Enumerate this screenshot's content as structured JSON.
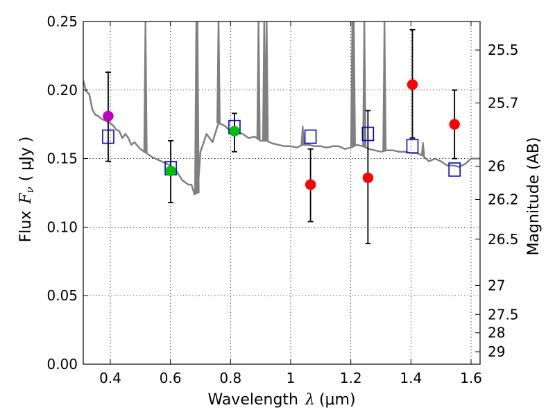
{
  "chart_data": {
    "type": "scatter",
    "xlabel": "Wavelength",
    "xlabel_symbol": "λ",
    "xlabel_unit": "(μm)",
    "ylabel": "Flux",
    "ylabel_symbol": "F",
    "ylabel_subscript": "ν",
    "ylabel_unit": "( μJy )",
    "ylabel_right": "Magnitude (AB)",
    "xlim": [
      0.31,
      1.63
    ],
    "ylim": [
      0.0,
      0.25
    ],
    "grid": true,
    "x_ticks": [
      {
        "value": 0.4,
        "label": "0.4"
      },
      {
        "value": 0.6,
        "label": "0.6"
      },
      {
        "value": 0.8,
        "label": "0.8"
      },
      {
        "value": 1.0,
        "label": "1"
      },
      {
        "value": 1.2,
        "label": "1.2"
      },
      {
        "value": 1.4,
        "label": "1.4"
      },
      {
        "value": 1.6,
        "label": "1.6"
      }
    ],
    "y_ticks": [
      {
        "value": 0.0,
        "label": "0.00"
      },
      {
        "value": 0.05,
        "label": "0.05"
      },
      {
        "value": 0.1,
        "label": "0.10"
      },
      {
        "value": 0.15,
        "label": "0.15"
      },
      {
        "value": 0.2,
        "label": "0.20"
      },
      {
        "value": 0.25,
        "label": "0.25"
      }
    ],
    "magnitude_ticks": [
      {
        "flux": 0.2292,
        "label": "25.5"
      },
      {
        "flux": 0.1906,
        "label": "25.7"
      },
      {
        "flux": 0.1445,
        "label": "26"
      },
      {
        "flux": 0.1202,
        "label": "26.2"
      },
      {
        "flux": 0.0912,
        "label": "26.5"
      },
      {
        "flux": 0.0575,
        "label": "27"
      },
      {
        "flux": 0.0363,
        "label": "27.5"
      },
      {
        "flux": 0.0229,
        "label": "28"
      },
      {
        "flux": 0.0091,
        "label": "29"
      }
    ],
    "spectrum": {
      "color": "#808080",
      "continuum": [
        [
          0.31,
          0.207
        ],
        [
          0.32,
          0.199
        ],
        [
          0.33,
          0.197
        ],
        [
          0.34,
          0.186
        ],
        [
          0.35,
          0.182
        ],
        [
          0.36,
          0.181
        ],
        [
          0.37,
          0.179
        ],
        [
          0.38,
          0.178
        ],
        [
          0.39,
          0.177
        ],
        [
          0.4,
          0.176
        ],
        [
          0.41,
          0.174
        ],
        [
          0.42,
          0.171
        ],
        [
          0.43,
          0.17
        ],
        [
          0.44,
          0.165
        ],
        [
          0.45,
          0.168
        ],
        [
          0.46,
          0.165
        ],
        [
          0.47,
          0.16
        ],
        [
          0.48,
          0.162
        ],
        [
          0.5,
          0.157
        ],
        [
          0.52,
          0.154
        ],
        [
          0.54,
          0.151
        ],
        [
          0.56,
          0.149
        ],
        [
          0.58,
          0.147
        ],
        [
          0.6,
          0.145
        ],
        [
          0.62,
          0.141
        ],
        [
          0.64,
          0.134
        ],
        [
          0.66,
          0.131
        ],
        [
          0.67,
          0.131
        ],
        [
          0.68,
          0.124
        ],
        [
          0.69,
          0.125
        ],
        [
          0.7,
          0.155
        ],
        [
          0.72,
          0.168
        ],
        [
          0.74,
          0.162
        ],
        [
          0.76,
          0.176
        ],
        [
          0.78,
          0.174
        ],
        [
          0.8,
          0.17
        ],
        [
          0.82,
          0.169
        ],
        [
          0.84,
          0.168
        ],
        [
          0.86,
          0.165
        ],
        [
          0.88,
          0.166
        ],
        [
          0.9,
          0.163
        ],
        [
          0.92,
          0.163
        ],
        [
          0.94,
          0.161
        ],
        [
          0.96,
          0.16
        ],
        [
          0.98,
          0.159
        ],
        [
          1.0,
          0.159
        ],
        [
          1.02,
          0.158
        ],
        [
          1.04,
          0.16
        ],
        [
          1.06,
          0.16
        ],
        [
          1.08,
          0.159
        ],
        [
          1.1,
          0.159
        ],
        [
          1.12,
          0.158
        ],
        [
          1.14,
          0.159
        ],
        [
          1.16,
          0.159
        ],
        [
          1.18,
          0.157
        ],
        [
          1.2,
          0.158
        ],
        [
          1.22,
          0.16
        ],
        [
          1.24,
          0.159
        ],
        [
          1.26,
          0.157
        ],
        [
          1.28,
          0.156
        ],
        [
          1.3,
          0.155
        ],
        [
          1.32,
          0.156
        ],
        [
          1.34,
          0.156
        ],
        [
          1.36,
          0.155
        ],
        [
          1.38,
          0.155
        ],
        [
          1.4,
          0.154
        ],
        [
          1.42,
          0.154
        ],
        [
          1.44,
          0.152
        ],
        [
          1.46,
          0.148
        ],
        [
          1.48,
          0.15
        ],
        [
          1.5,
          0.148
        ],
        [
          1.52,
          0.145
        ],
        [
          1.54,
          0.145
        ],
        [
          1.56,
          0.144
        ],
        [
          1.58,
          0.146
        ],
        [
          1.6,
          0.15
        ],
        [
          1.63,
          0.15
        ]
      ],
      "emission_lines": [
        {
          "x": 0.517,
          "peak": 0.26
        },
        {
          "x": 0.686,
          "peak": 0.26
        },
        {
          "x": 0.69,
          "peak": 0.26
        },
        {
          "x": 0.76,
          "peak": 0.26
        },
        {
          "x": 0.893,
          "peak": 0.26
        },
        {
          "x": 0.912,
          "peak": 0.26
        },
        {
          "x": 0.92,
          "peak": 0.26
        },
        {
          "x": 1.04,
          "peak": 0.174
        },
        {
          "x": 1.205,
          "peak": 0.26
        },
        {
          "x": 1.21,
          "peak": 0.26
        },
        {
          "x": 1.245,
          "peak": 0.26
        },
        {
          "x": 1.312,
          "peak": 0.26
        },
        {
          "x": 1.44,
          "peak": 0.162
        }
      ]
    },
    "photometry": [
      {
        "x": 0.393,
        "y": 0.181,
        "err_low": 0.148,
        "err_high": 0.213,
        "color": "#bf00bf"
      },
      {
        "x": 0.601,
        "y": 0.141,
        "err_low": 0.118,
        "err_high": 0.163,
        "color": "#00bf00"
      },
      {
        "x": 0.813,
        "y": 0.17,
        "err_low": 0.155,
        "err_high": 0.183,
        "color": "#00bf00"
      },
      {
        "x": 1.066,
        "y": 0.131,
        "err_low": 0.104,
        "err_high": 0.157,
        "color": "#ff0000"
      },
      {
        "x": 1.257,
        "y": 0.136,
        "err_low": 0.088,
        "err_high": 0.185,
        "color": "#ff0000"
      },
      {
        "x": 1.405,
        "y": 0.204,
        "err_low": 0.165,
        "err_high": 0.244,
        "color": "#ff0000"
      },
      {
        "x": 1.545,
        "y": 0.175,
        "err_low": 0.15,
        "err_high": 0.2,
        "color": "#ff0000"
      }
    ],
    "model_points": {
      "color": "#0000cc",
      "points": [
        {
          "x": 0.393,
          "y": 0.166
        },
        {
          "x": 0.601,
          "y": 0.143
        },
        {
          "x": 0.813,
          "y": 0.173
        },
        {
          "x": 1.066,
          "y": 0.166
        },
        {
          "x": 1.257,
          "y": 0.168
        },
        {
          "x": 1.405,
          "y": 0.159
        },
        {
          "x": 1.545,
          "y": 0.142
        }
      ]
    }
  }
}
